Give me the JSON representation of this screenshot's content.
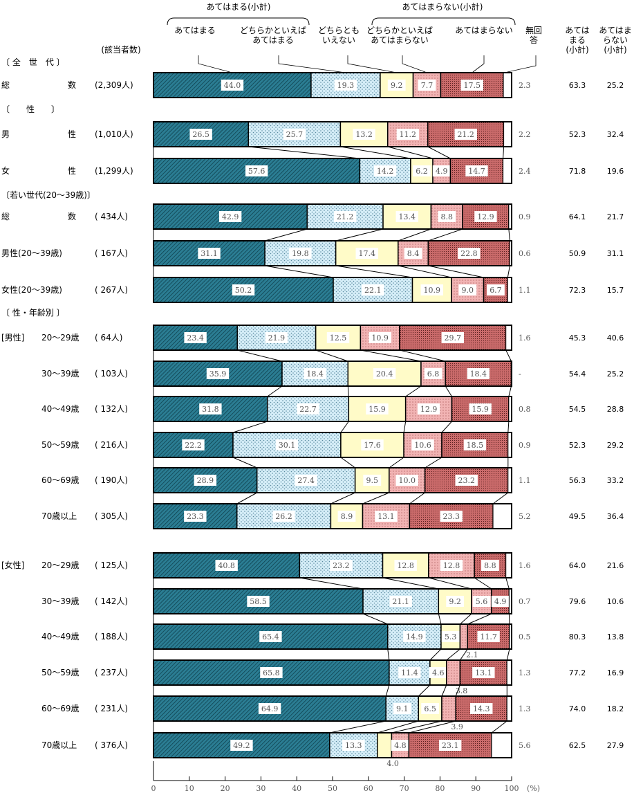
{
  "chart_data": {
    "type": "bar",
    "orientation": "horizontal",
    "stacked": true,
    "unit": "(%)",
    "xlim": [
      0,
      100
    ],
    "xticks": [
      "0",
      "10",
      "20",
      "30",
      "40",
      "50",
      "60",
      "70",
      "80",
      "90",
      "100"
    ],
    "grid": false,
    "header_groups": [
      "あてはまる(小計)",
      "あてはまらない(小計)"
    ],
    "series": [
      {
        "name": "あてはまる",
        "color": "#2b7d93"
      },
      {
        "name": "どちらかといえば\nあてはまる",
        "color": "#d6eef8"
      },
      {
        "name": "どちらとも\nいえない",
        "color": "#fffbc8"
      },
      {
        "name": "どちらかといえば\nあてはまらない",
        "color": "#f1b3b3"
      },
      {
        "name": "あてはまらない",
        "color": "#b85a5a"
      },
      {
        "name": "無回\n答",
        "color": "#ffffff"
      }
    ],
    "n_header": "(該当者数)",
    "subtotal_headers": [
      "あては\nまる\n(小計)",
      "あてはま\nらない\n(小計)"
    ],
    "sections": [
      {
        "title": "〔 全　世　代 〕",
        "rows": [
          {
            "label": "総　　　　　　　数",
            "n": "(2,309人)",
            "values": [
              44.0,
              19.3,
              9.2,
              7.7,
              17.5,
              2.3
            ],
            "na_text": "2.3",
            "sub": [
              "63.3",
              "25.2"
            ]
          }
        ]
      },
      {
        "title": "〔　　性　　〕",
        "rows": [
          {
            "label": "男　　　　　　　性",
            "n": "(1,010人)",
            "values": [
              26.5,
              25.7,
              13.2,
              11.2,
              21.2,
              2.2
            ],
            "na_text": "2.2",
            "sub": [
              "52.3",
              "32.4"
            ]
          },
          {
            "label": "女　　　　　　　性",
            "n": "(1,299人)",
            "values": [
              57.6,
              14.2,
              6.2,
              4.9,
              14.7,
              2.4
            ],
            "na_text": "2.4",
            "sub": [
              "71.8",
              "19.6"
            ]
          }
        ]
      },
      {
        "title": "〔若い世代(20～39歳)〕",
        "rows": [
          {
            "label": "総　　　　　　　数",
            "n": "( 434人)",
            "values": [
              42.9,
              21.2,
              13.4,
              8.8,
              12.9,
              0.9
            ],
            "na_text": "0.9",
            "sub": [
              "64.1",
              "21.7"
            ]
          },
          {
            "label": "男性(20～39歳)",
            "n": "( 167人)",
            "values": [
              31.1,
              19.8,
              17.4,
              8.4,
              22.8,
              0.6
            ],
            "na_text": "0.6",
            "sub": [
              "50.9",
              "31.1"
            ]
          },
          {
            "label": "女性(20～39歳)",
            "n": "( 267人)",
            "values": [
              50.2,
              22.1,
              10.9,
              9.0,
              6.7,
              1.1
            ],
            "na_text": "1.1",
            "sub": [
              "72.3",
              "15.7"
            ]
          }
        ]
      },
      {
        "title": "〔 性・年齢別 〕",
        "group": "[男性]",
        "rows": [
          {
            "label": "20～29歳",
            "n": "(  64人)",
            "values": [
              23.4,
              21.9,
              12.5,
              10.9,
              29.7,
              1.6
            ],
            "na_text": "1.6",
            "sub": [
              "45.3",
              "40.6"
            ]
          },
          {
            "label": "30～39歳",
            "n": "( 103人)",
            "values": [
              35.9,
              18.4,
              20.4,
              6.8,
              18.4,
              0
            ],
            "na_text": "-",
            "sub": [
              "54.4",
              "25.2"
            ]
          },
          {
            "label": "40～49歳",
            "n": "( 132人)",
            "values": [
              31.8,
              22.7,
              15.9,
              12.9,
              15.9,
              0.8
            ],
            "na_text": "0.8",
            "sub": [
              "54.5",
              "28.8"
            ]
          },
          {
            "label": "50～59歳",
            "n": "( 216人)",
            "values": [
              22.2,
              30.1,
              17.6,
              10.6,
              18.5,
              0.9
            ],
            "na_text": "0.9",
            "sub": [
              "52.3",
              "29.2"
            ]
          },
          {
            "label": "60～69歳",
            "n": "( 190人)",
            "values": [
              28.9,
              27.4,
              9.5,
              10.0,
              23.2,
              1.1
            ],
            "na_text": "1.1",
            "sub": [
              "56.3",
              "33.2"
            ]
          },
          {
            "label": "70歳以上",
            "n": "( 305人)",
            "values": [
              23.3,
              26.2,
              8.9,
              13.1,
              23.3,
              5.2
            ],
            "na_text": "5.2",
            "sub": [
              "49.5",
              "36.4"
            ]
          }
        ]
      },
      {
        "title": "",
        "group": "[女性]",
        "rows": [
          {
            "label": "20～29歳",
            "n": "( 125人)",
            "values": [
              40.8,
              23.2,
              12.8,
              12.8,
              8.8,
              1.6
            ],
            "na_text": "1.6",
            "sub": [
              "64.0",
              "21.6"
            ]
          },
          {
            "label": "30～39歳",
            "n": "( 142人)",
            "values": [
              58.5,
              21.1,
              9.2,
              5.6,
              4.9,
              0.7
            ],
            "na_text": "0.7",
            "sub": [
              "79.6",
              "10.6"
            ]
          },
          {
            "label": "40～49歳",
            "n": "( 188人)",
            "values": [
              65.4,
              14.9,
              5.3,
              2.1,
              11.7,
              0.5
            ],
            "na_text": "0.5",
            "sub": [
              "80.3",
              "13.8"
            ]
          },
          {
            "label": "50～59歳",
            "n": "( 237人)",
            "values": [
              65.8,
              11.4,
              4.6,
              3.8,
              13.1,
              1.3
            ],
            "na_text": "1.3",
            "sub": [
              "77.2",
              "16.9"
            ]
          },
          {
            "label": "60～69歳",
            "n": "( 231人)",
            "values": [
              64.9,
              9.1,
              6.5,
              3.9,
              14.3,
              1.3
            ],
            "na_text": "1.3",
            "sub": [
              "74.0",
              "18.2"
            ]
          },
          {
            "label": "70歳以上",
            "n": "( 376人)",
            "values": [
              49.2,
              13.3,
              4.0,
              4.8,
              23.1,
              5.6
            ],
            "na_text": "5.6",
            "sub": [
              "62.5",
              "27.9"
            ]
          }
        ]
      }
    ]
  }
}
